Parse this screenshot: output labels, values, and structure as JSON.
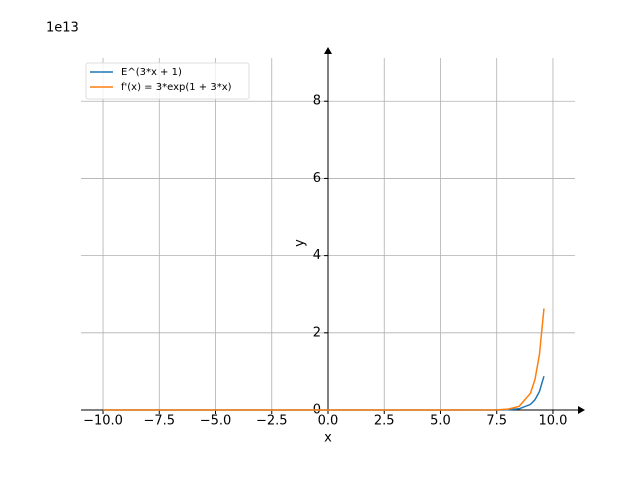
{
  "chart_data": {
    "type": "line",
    "x": [
      -10,
      -5,
      0,
      5,
      7.5,
      8,
      8.5,
      9,
      9.2,
      9.4,
      9.6
    ],
    "series": [
      {
        "name": "E^(3*x + 1)",
        "color": "#1f77b4",
        "values": [
          0,
          0,
          0,
          0,
          0.0016,
          0.0072,
          0.032,
          0.145,
          0.264,
          0.48,
          0.877
        ]
      },
      {
        "name": "f'(x) = 3*exp(1 + 3*x)",
        "color": "#ff7f0e",
        "values": [
          0,
          0,
          0,
          0,
          0.0048,
          0.0216,
          0.096,
          0.435,
          0.79,
          1.44,
          2.63
        ]
      }
    ],
    "xlim": [
      -10.98,
      10.98
    ],
    "ylim": [
      0,
      9.12
    ],
    "xticks": [
      {
        "value": -10,
        "label": "−10.0"
      },
      {
        "value": -7.5,
        "label": "−7.5"
      },
      {
        "value": -5,
        "label": "−5.0"
      },
      {
        "value": -2.5,
        "label": "−2.5"
      },
      {
        "value": 0,
        "label": "0.0"
      },
      {
        "value": 2.5,
        "label": "2.5"
      },
      {
        "value": 5,
        "label": "5.0"
      },
      {
        "value": 7.5,
        "label": "7.5"
      },
      {
        "value": 10,
        "label": "10.0"
      }
    ],
    "yticks": [
      0,
      2,
      4,
      6,
      8
    ],
    "y_offset_label": "1e13",
    "x_label": "x",
    "y_label": "y",
    "grid": true,
    "legend": "upper-left"
  }
}
